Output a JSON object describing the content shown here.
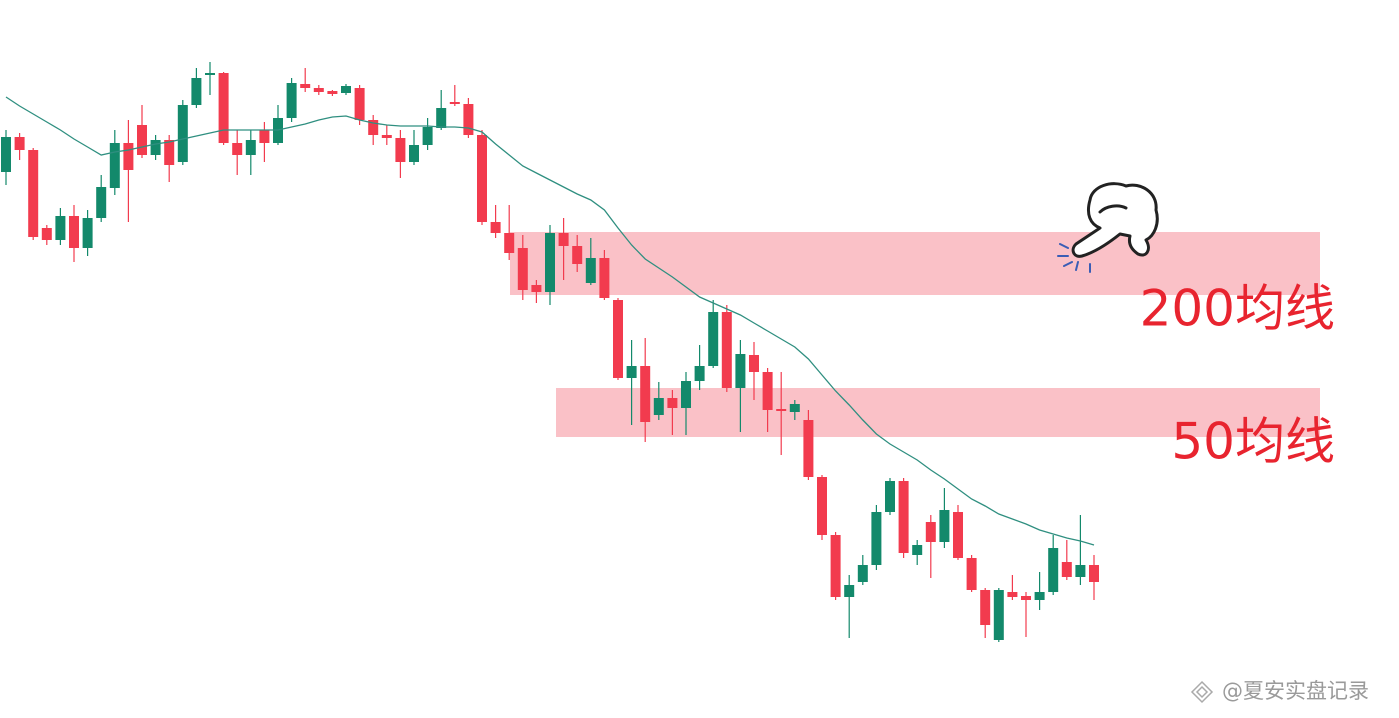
{
  "chart_data": {
    "type": "candlestick",
    "ylim": [
      0,
      718
    ],
    "up_color": "#13896b",
    "down_color": "#f23b4e",
    "open": [
      546,
      581,
      568,
      490,
      478,
      502,
      470,
      500,
      530,
      575,
      593,
      563,
      578,
      556,
      613,
      644,
      645,
      575,
      563,
      588,
      575,
      600,
      634,
      630,
      627,
      625,
      630,
      598,
      583,
      580,
      556,
      573,
      590,
      616,
      614,
      583,
      496,
      485,
      470,
      433,
      426,
      485,
      472,
      435,
      460,
      418,
      340,
      352,
      303,
      320,
      310,
      337,
      352,
      406,
      330,
      363,
      346,
      309,
      306,
      298,
      241,
      183,
      121,
      136,
      153,
      206,
      237,
      163,
      196,
      176,
      206,
      160,
      128,
      78,
      126,
      122,
      118,
      126,
      156,
      141,
      153
    ],
    "high": [
      588,
      585,
      570,
      493,
      510,
      513,
      508,
      543,
      588,
      598,
      613,
      583,
      583,
      618,
      650,
      656,
      646,
      588,
      588,
      596,
      613,
      640,
      650,
      633,
      628,
      634,
      633,
      603,
      593,
      588,
      588,
      600,
      628,
      633,
      620,
      588,
      513,
      513,
      483,
      438,
      493,
      500,
      483,
      480,
      468,
      420,
      378,
      380,
      336,
      328,
      346,
      373,
      418,
      413,
      378,
      376,
      350,
      346,
      318,
      308,
      243,
      186,
      143,
      163,
      213,
      240,
      240,
      178,
      203,
      230,
      213,
      163,
      130,
      130,
      143,
      126,
      146,
      183,
      178,
      203,
      163
    ],
    "low": [
      533,
      558,
      478,
      473,
      473,
      456,
      462,
      496,
      523,
      496,
      560,
      558,
      536,
      553,
      610,
      623,
      573,
      543,
      543,
      556,
      573,
      596,
      626,
      623,
      622,
      623,
      593,
      573,
      573,
      540,
      553,
      568,
      588,
      612,
      580,
      493,
      480,
      458,
      418,
      415,
      413,
      438,
      446,
      433,
      418,
      338,
      293,
      276,
      298,
      283,
      283,
      328,
      350,
      326,
      286,
      318,
      286,
      263,
      298,
      238,
      178,
      118,
      80,
      133,
      148,
      203,
      160,
      153,
      140,
      170,
      158,
      126,
      80,
      76,
      118,
      81,
      108,
      123,
      138,
      133,
      118
    ],
    "close": [
      581,
      568,
      481,
      478,
      502,
      470,
      500,
      531,
      575,
      548,
      563,
      578,
      553,
      613,
      640,
      645,
      575,
      563,
      578,
      575,
      600,
      635,
      630,
      626,
      624,
      632,
      598,
      583,
      580,
      556,
      573,
      591,
      610,
      614,
      583,
      496,
      485,
      465,
      428,
      426,
      485,
      472,
      454,
      460,
      420,
      340,
      352,
      296,
      320,
      310,
      337,
      352,
      406,
      330,
      364,
      346,
      308,
      307,
      314,
      241,
      183,
      121,
      133,
      153,
      206,
      237,
      165,
      173,
      176,
      208,
      160,
      128,
      93,
      128,
      121,
      118,
      126,
      170,
      141,
      153,
      136
    ],
    "ma": {
      "color": "#2f8f80",
      "values": [
        621,
        612,
        604,
        596,
        588,
        579,
        571,
        563,
        566,
        568,
        571,
        574,
        576,
        579,
        582,
        585,
        588,
        588,
        588,
        588,
        588,
        591,
        594,
        598,
        601,
        602,
        598,
        595,
        593,
        592,
        592,
        592,
        591,
        591,
        590,
        586,
        574,
        563,
        552,
        545,
        538,
        531,
        524,
        518,
        508,
        490,
        473,
        459,
        450,
        441,
        431,
        421,
        415,
        409,
        403,
        395,
        387,
        379,
        371,
        359,
        343,
        327,
        313,
        298,
        284,
        274,
        266,
        258,
        248,
        239,
        229,
        219,
        212,
        204,
        199,
        194,
        188,
        184,
        180,
        177,
        173
      ]
    },
    "zones": [
      {
        "label": "200均线",
        "color": "#f9b6bd",
        "range": [
          423,
          486
        ]
      },
      {
        "label": "50均线",
        "color": "#f9b6bd",
        "range": [
          281,
          330
        ]
      }
    ],
    "label_color": "#e8242f",
    "watermark": "@夏安实盘记录"
  }
}
